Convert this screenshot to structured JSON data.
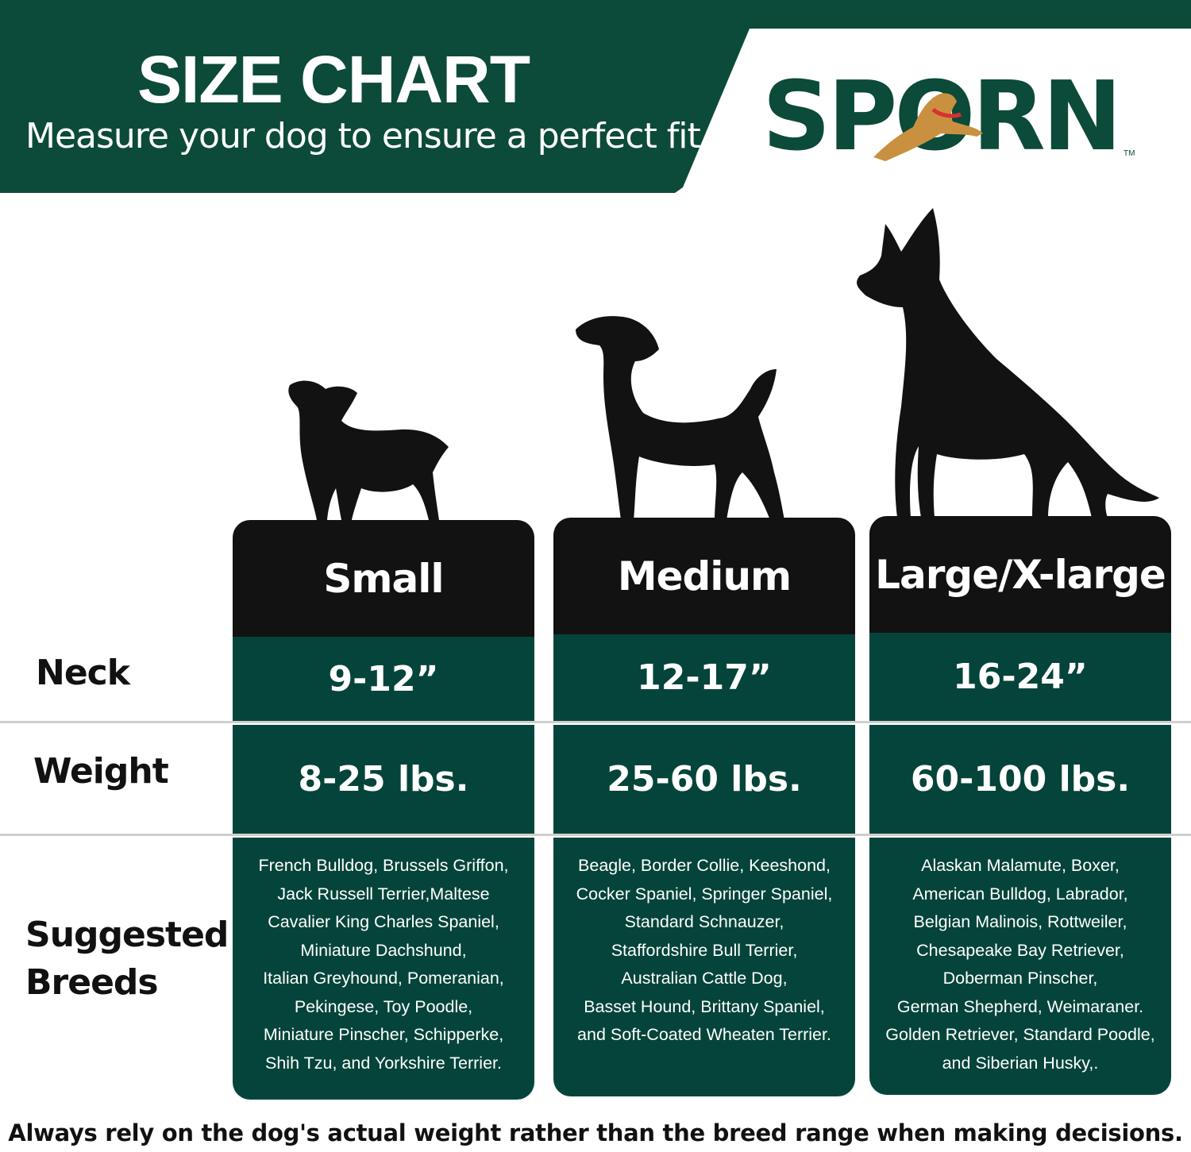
{
  "header": {
    "title": "SIZE CHART",
    "subtitle": "Measure your dog to ensure a perfect fit"
  },
  "logo": {
    "text": "SPORN",
    "trademark": "TM"
  },
  "colors": {
    "brand_green": "#0c4a3a",
    "cell_green": "#05443a",
    "header_black": "#121212"
  },
  "row_labels": {
    "neck": "Neck",
    "weight": "Weight",
    "breeds": "Suggested Breeds"
  },
  "sizes": [
    {
      "name": "Small",
      "neck": "9-12”",
      "weight": "8-25 lbs.",
      "breeds": [
        "French Bulldog, Brussels Griffon,",
        "Jack Russell Terrier,Maltese",
        "Cavalier King Charles Spaniel,",
        "Miniature Dachshund,",
        "Italian Greyhound, Pomeranian,",
        "Pekingese,  Toy Poodle,",
        "Miniature Pinscher, Schipperke,",
        "Shih Tzu, and Yorkshire Terrier."
      ]
    },
    {
      "name": "Medium",
      "neck": "12-17”",
      "weight": "25-60 lbs.",
      "breeds": [
        "Beagle, Border Collie, Keeshond,",
        "Cocker Spaniel, Springer Spaniel,",
        "Standard Schnauzer,",
        "Staffordshire Bull Terrier,",
        "Australian Cattle Dog,",
        "Basset Hound, Brittany Spaniel,",
        "and Soft-Coated Wheaten Terrier."
      ]
    },
    {
      "name": "Large/X-large",
      "neck": "16-24”",
      "weight": "60-100 lbs.",
      "breeds": [
        "Alaskan Malamute, Boxer,",
        "American Bulldog, Labrador,",
        "Belgian Malinois, Rottweiler,",
        "Chesapeake Bay Retriever,",
        "Doberman Pinscher,",
        "German Shepherd, Weimaraner.",
        "Golden Retriever, Standard Poodle,",
        "and Siberian Husky,."
      ]
    }
  ],
  "footer": "Always rely on the dog's actual weight rather than the breed range when making decisions."
}
